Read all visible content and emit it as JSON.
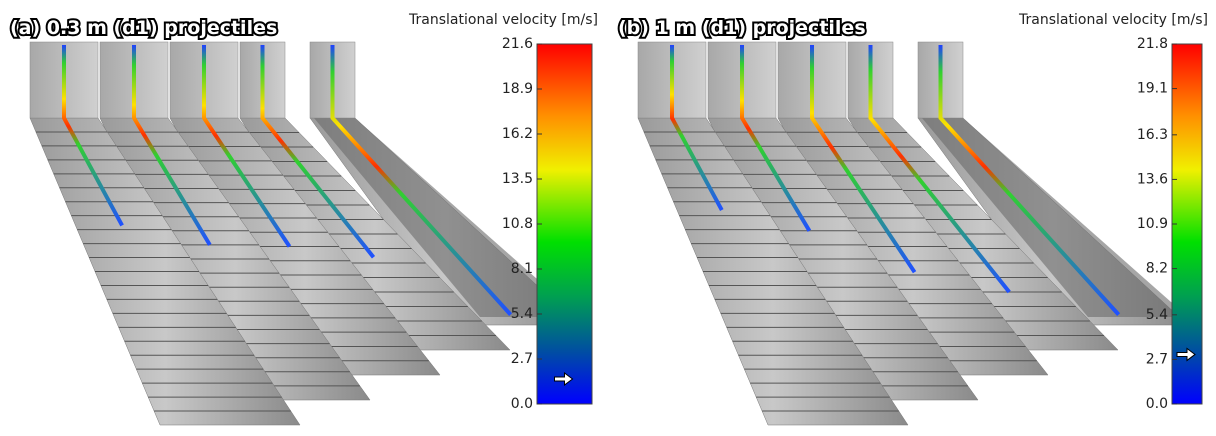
{
  "panels": [
    {
      "title": "(a) 0.3 m (d1) projectiles",
      "colorbar": {
        "label": "Translational velocity [m/s]",
        "lim": [
          0,
          21.6
        ],
        "ticks": [
          {
            "value": 0,
            "label": "0.0"
          },
          2.7,
          5.4,
          8.1,
          10.8,
          13.5,
          16.2,
          18.9,
          21.6
        ],
        "marker": 1.5
      }
    },
    {
      "title": "(b) 1 m (d1) projectiles",
      "colorbar": {
        "label": "Translational velocity [m/s]",
        "lim": [
          0,
          21.8
        ],
        "ticks": [
          {
            "value": 0,
            "label": "0.0"
          },
          2.7,
          5.4,
          8.2,
          10.9,
          13.6,
          16.3,
          19.1,
          21.8
        ],
        "marker": 3.0
      }
    }
  ]
}
